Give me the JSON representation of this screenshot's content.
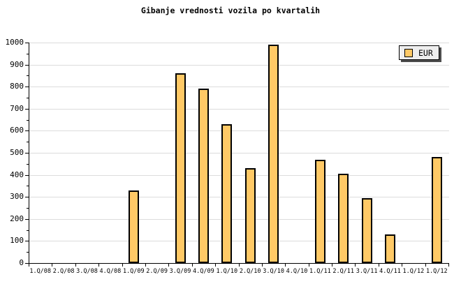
{
  "title": "Gibanje vrednosti vozila po kvartalih",
  "legend": {
    "label": "EUR",
    "swatch_color": "#FFC966",
    "box_color": "#EEEEEE",
    "shadow_color": "#4D4D4D"
  },
  "chart_data": {
    "type": "bar",
    "title": "Gibanje vrednosti vozila po kvartalih",
    "categories": [
      "1.Q/08",
      "2.Q/08",
      "3.Q/08",
      "4.Q/08",
      "1.Q/09",
      "2.Q/09",
      "3.Q/09",
      "4.Q/09",
      "1.Q/10",
      "2.Q/10",
      "3.Q/10",
      "4.Q/10",
      "1.Q/11",
      "2.Q/11",
      "3.Q/11",
      "4.Q/11",
      "1.Q/12",
      "1.Q/12"
    ],
    "series": [
      {
        "name": "EUR",
        "values": [
          0,
          0,
          0,
          0,
          330,
          0,
          860,
          790,
          630,
          430,
          990,
          0,
          470,
          405,
          295,
          130,
          0,
          480
        ]
      }
    ],
    "xlabel": "",
    "ylabel": "",
    "ylim": [
      0,
      1000
    ],
    "yticks": [
      0,
      100,
      200,
      300,
      400,
      500,
      600,
      700,
      800,
      900,
      1000
    ],
    "minor_tick_step": 50,
    "grid": "horizontal-major",
    "legend_position": "top-right",
    "bar_color": "#FFC966",
    "bar_border_color": "#000000",
    "grid_color": "#DCDCDC",
    "axis_color": "#000000",
    "background_color": "#FFFFFF"
  }
}
